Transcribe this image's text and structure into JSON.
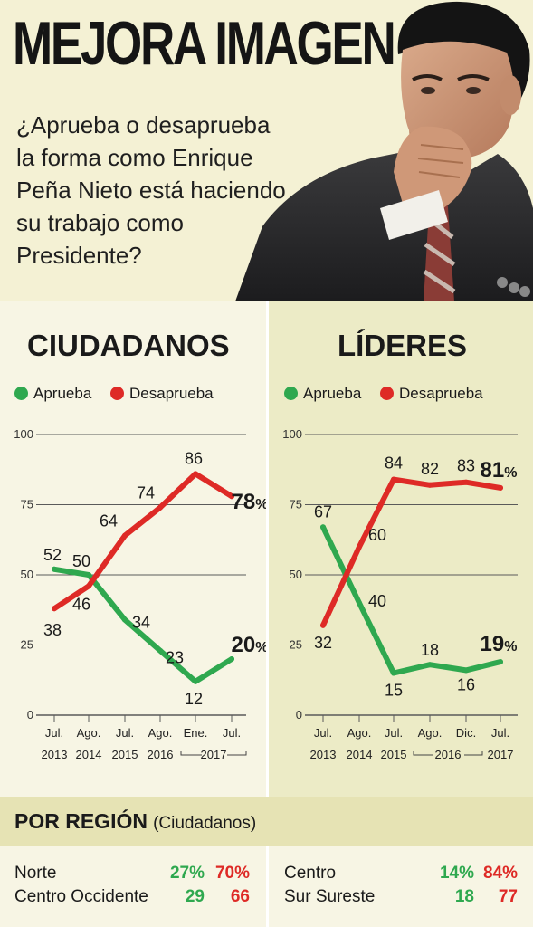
{
  "header": {
    "title": "MEJORA IMAGEN",
    "question": "¿Aprueba o desaprueba la forma como Enrique Peña Nieto está haciendo su trabajo como Presidente?"
  },
  "colors": {
    "approve": "#2fa84f",
    "disapprove": "#de2a26",
    "grid": "#5a5a5a",
    "background": "#f6f3dc"
  },
  "chart_data": [
    {
      "type": "line",
      "title": "CIUDADANOS",
      "legend": [
        "Aprueba",
        "Desaprueba"
      ],
      "x": [
        "Jul. 2013",
        "Ago. 2014",
        "Jul. 2015",
        "Ago. 2016",
        "Ene. 2017",
        "Jul. 2017"
      ],
      "x_top": [
        "Jul.",
        "Ago.",
        "Jul.",
        "Ago.",
        "Ene.",
        "Jul."
      ],
      "x_bottom": [
        "2013",
        "2014",
        "2015",
        "2016",
        "2017",
        ""
      ],
      "series": [
        {
          "name": "Aprueba",
          "values": [
            52,
            50,
            34,
            23,
            12,
            20
          ],
          "labels": [
            "52",
            "50",
            "34",
            "23",
            "12",
            "20"
          ]
        },
        {
          "name": "Desaprueba",
          "values": [
            38,
            46,
            64,
            74,
            86,
            78
          ],
          "labels": [
            "38",
            "46",
            "64",
            "74",
            "86",
            "78"
          ]
        }
      ],
      "yticks": [
        0,
        25,
        50,
        75,
        100
      ],
      "ylim": [
        0,
        100
      ],
      "grid": true
    },
    {
      "type": "line",
      "title": "LÍDERES",
      "legend": [
        "Aprueba",
        "Desaprueba"
      ],
      "x": [
        "Jul. 2013",
        "Ago. 2014",
        "Jul. 2015",
        "Ago. 2016",
        "Dic. 2016",
        "Jul. 2017"
      ],
      "x_top": [
        "Jul.",
        "Ago.",
        "Jul.",
        "Ago.",
        "Dic.",
        "Jul."
      ],
      "x_bottom": [
        "2013",
        "2014",
        "2015",
        "2016",
        "",
        "2017"
      ],
      "series": [
        {
          "name": "Aprueba",
          "values": [
            67,
            40,
            15,
            18,
            16,
            19
          ],
          "labels": [
            "67",
            "40",
            "15",
            "18",
            "16",
            "19"
          ]
        },
        {
          "name": "Desaprueba",
          "values": [
            32,
            60,
            84,
            82,
            83,
            81
          ],
          "labels": [
            "32",
            "60",
            "84",
            "82",
            "83",
            "81"
          ]
        }
      ],
      "yticks": [
        0,
        25,
        50,
        75,
        100
      ],
      "ylim": [
        0,
        100
      ],
      "grid": true
    }
  ],
  "region": {
    "title": "POR REGIÓN",
    "subtitle": "(Ciudadanos)",
    "rows": [
      {
        "name": "Norte",
        "aprueba": "27%",
        "desaprueba": "70%"
      },
      {
        "name": "Centro Occidente",
        "aprueba": "29",
        "desaprueba": "66"
      },
      {
        "name": "Centro",
        "aprueba": "14%",
        "desaprueba": "84%"
      },
      {
        "name": "Sur Sureste",
        "aprueba": "18",
        "desaprueba": "77"
      }
    ]
  }
}
